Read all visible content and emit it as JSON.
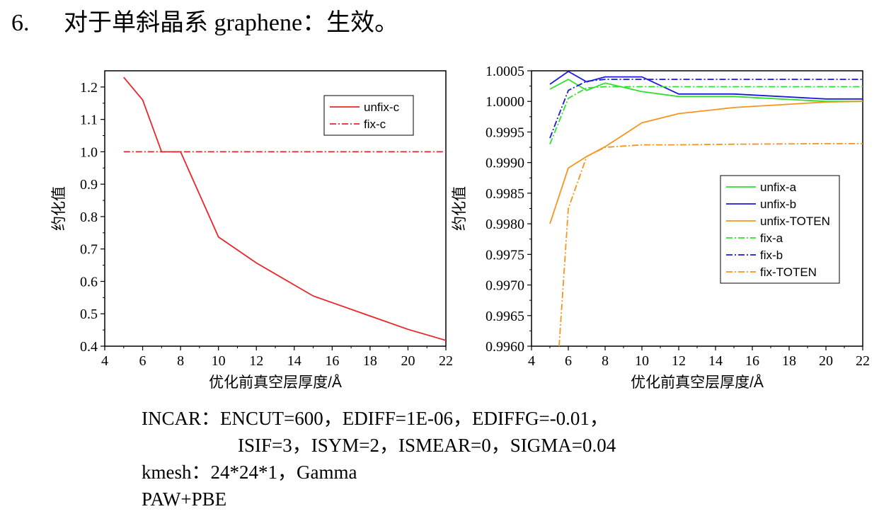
{
  "heading": {
    "number": "6.",
    "text": "对于单斜晶系 graphene：生效。"
  },
  "chart_data": [
    {
      "type": "line",
      "ylabel": "约化值",
      "xlabel": "优化前真空层厚度/Å",
      "xlim": [
        4,
        22
      ],
      "ylim": [
        0.4,
        1.25
      ],
      "xticks": [
        4,
        6,
        8,
        10,
        12,
        14,
        16,
        18,
        20,
        22
      ],
      "yticks": [
        0.4,
        0.5,
        0.6,
        0.7,
        0.8,
        0.9,
        1.0,
        1.1,
        1.2
      ],
      "ytick_labels": [
        "0.4",
        "0.5",
        "0.6",
        "0.7",
        "0.8",
        "0.9",
        "1.0",
        "1.1",
        "1.2"
      ],
      "legend_position": "top-right",
      "series": [
        {
          "name": "unfix-c",
          "color": "#e8262a",
          "style": "solid",
          "x": [
            5,
            6,
            7,
            8,
            10,
            12,
            15,
            20,
            22
          ],
          "values": [
            1.23,
            1.16,
            1.0,
            1.0,
            0.737,
            0.657,
            0.555,
            0.452,
            0.418
          ]
        },
        {
          "name": "fix-c",
          "color": "#e8262a",
          "style": "dashdot",
          "x": [
            5,
            6,
            7,
            8,
            10,
            12,
            15,
            20,
            22
          ],
          "values": [
            1.0,
            1.0,
            1.0,
            1.0,
            1.0,
            1.0,
            1.0,
            1.0,
            1.0
          ]
        }
      ]
    },
    {
      "type": "line",
      "ylabel": "约化值",
      "xlabel": "优化前真空层厚度/Å",
      "xlim": [
        4,
        22
      ],
      "ylim": [
        0.996,
        1.0005
      ],
      "xticks": [
        4,
        6,
        8,
        10,
        12,
        14,
        16,
        18,
        20,
        22
      ],
      "yticks": [
        0.996,
        0.9965,
        0.997,
        0.9975,
        0.998,
        0.9985,
        0.999,
        0.9995,
        1.0,
        1.0005
      ],
      "ytick_labels": [
        "0.9960",
        "0.9965",
        "0.9970",
        "0.9975",
        "0.9980",
        "0.9985",
        "0.9990",
        "0.9995",
        "1.0000",
        "1.0005"
      ],
      "legend_position": "center-right",
      "series": [
        {
          "name": "unfix-a",
          "color": "#2ee02e",
          "style": "solid",
          "x": [
            5,
            6,
            7,
            8,
            10,
            12,
            15,
            20,
            22
          ],
          "values": [
            1.0002,
            1.00036,
            1.00018,
            1.0003,
            1.00016,
            1.00008,
            1.00008,
            1.0,
            1.0
          ]
        },
        {
          "name": "unfix-b",
          "color": "#1a1adc",
          "style": "solid",
          "x": [
            5,
            6,
            7,
            8,
            10,
            12,
            15,
            20,
            22
          ],
          "values": [
            1.00028,
            1.00049,
            1.00032,
            1.0004,
            1.0004,
            1.00012,
            1.00012,
            1.00004,
            1.00004
          ]
        },
        {
          "name": "unfix-TOTEN",
          "color": "#f7941d",
          "style": "solid",
          "x": [
            5,
            6,
            7,
            8,
            10,
            12,
            15,
            20,
            22
          ],
          "values": [
            0.998,
            0.99891,
            0.9991,
            0.99926,
            0.99965,
            0.9998,
            0.9999,
            0.99999,
            1.0
          ]
        },
        {
          "name": "fix-a",
          "color": "#2ee02e",
          "style": "dashdot",
          "x": [
            5,
            6,
            7,
            8,
            10,
            12,
            15,
            20,
            22
          ],
          "values": [
            0.9993,
            1.00005,
            1.00022,
            1.00024,
            1.00024,
            1.00024,
            1.00024,
            1.00024,
            1.00024
          ]
        },
        {
          "name": "fix-b",
          "color": "#1a1adc",
          "style": "dashdot",
          "x": [
            5,
            6,
            7,
            8,
            10,
            12,
            15,
            20,
            22
          ],
          "values": [
            0.9994,
            1.00018,
            1.00033,
            1.00036,
            1.00036,
            1.00036,
            1.00036,
            1.00036,
            1.00036
          ]
        },
        {
          "name": "fix-TOTEN",
          "color": "#f7941d",
          "style": "dashdot",
          "x": [
            5.5,
            6,
            7,
            8,
            10,
            12,
            15,
            20,
            22
          ],
          "values": [
            0.996,
            0.99825,
            0.9991,
            0.99925,
            0.99929,
            0.99929,
            0.9993,
            0.99931,
            0.99931
          ]
        }
      ]
    }
  ],
  "params": {
    "incar_line1": "INCAR：ENCUT=600，EDIFF=1E-06，EDIFFG=-0.01，",
    "incar_line2": "ISIF=3，ISYM=2，ISMEAR=0，SIGMA=0.04",
    "kmesh": "kmesh：24*24*1，Gamma",
    "method": "PAW+PBE"
  }
}
